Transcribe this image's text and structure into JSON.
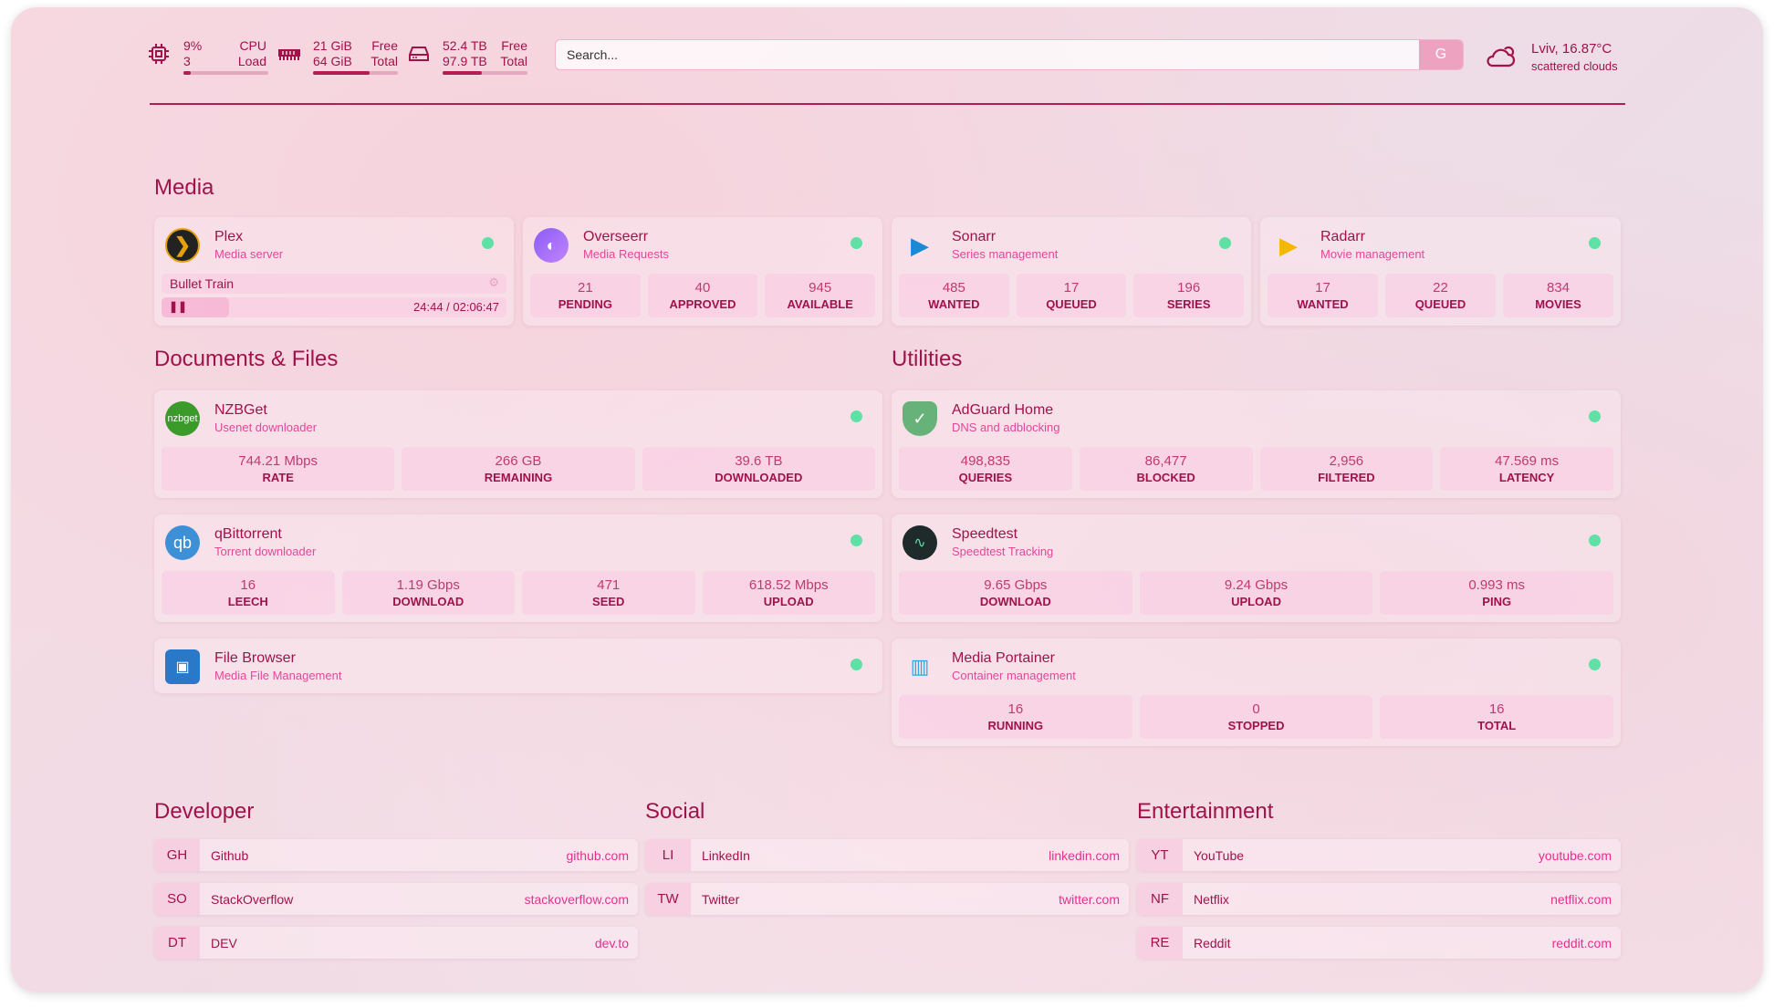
{
  "colors": {
    "accent": "#a0124a",
    "subtitle": "#e2479a",
    "status_online": "#5fe0a4",
    "stat_bg": "#f9c8e1"
  },
  "header": {
    "cpu": {
      "icon": "cpu-icon",
      "value": "9%",
      "sub": "3",
      "label1": "CPU",
      "label2": "Load",
      "percent": 9
    },
    "memory": {
      "icon": "memory-icon",
      "value": "21 GiB",
      "sub": "64 GiB",
      "label1": "Free",
      "label2": "Total",
      "percent": 67
    },
    "disk": {
      "icon": "disk-icon",
      "value": "52.4 TB",
      "sub": "97.9 TB",
      "label1": "Free",
      "label2": "Total",
      "percent": 46
    },
    "search": {
      "placeholder": "Search...",
      "button": "G"
    },
    "weather": {
      "icon": "cloud-sun-icon",
      "location": "Lviv, 16.87°C",
      "condition": "scattered clouds"
    }
  },
  "sections": {
    "media": "Media",
    "documents": "Documents & Files",
    "utilities": "Utilities",
    "developer": "Developer",
    "social": "Social",
    "entertainment": "Entertainment"
  },
  "plex": {
    "name": "Plex",
    "desc": "Media server",
    "now_playing": "Bullet Train",
    "time": "24:44 / 02:06:47",
    "progress": 0.195
  },
  "cards": [
    {
      "id": "overseerr",
      "name": "Overseerr",
      "desc": "Media Requests",
      "icon": "overseerr-icon",
      "stats": [
        [
          "21",
          "PENDING"
        ],
        [
          "40",
          "APPROVED"
        ],
        [
          "945",
          "AVAILABLE"
        ]
      ]
    },
    {
      "id": "sonarr",
      "name": "Sonarr",
      "desc": "Series management",
      "icon": "sonarr-icon",
      "stats": [
        [
          "485",
          "WANTED"
        ],
        [
          "17",
          "QUEUED"
        ],
        [
          "196",
          "SERIES"
        ]
      ]
    },
    {
      "id": "radarr",
      "name": "Radarr",
      "desc": "Movie management",
      "icon": "radarr-icon",
      "stats": [
        [
          "17",
          "WANTED"
        ],
        [
          "22",
          "QUEUED"
        ],
        [
          "834",
          "MOVIES"
        ]
      ]
    },
    {
      "id": "nzbget",
      "name": "NZBGet",
      "desc": "Usenet downloader",
      "icon": "nzbget-icon",
      "logo_text": "nzbget",
      "stats": [
        [
          "744.21 Mbps",
          "RATE"
        ],
        [
          "266 GB",
          "REMAINING"
        ],
        [
          "39.6 TB",
          "DOWNLOADED"
        ]
      ]
    },
    {
      "id": "qbittorrent",
      "name": "qBittorrent",
      "desc": "Torrent downloader",
      "icon": "qbittorrent-icon",
      "logo_text": "qb",
      "stats": [
        [
          "16",
          "LEECH"
        ],
        [
          "1.19 Gbps",
          "DOWNLOAD"
        ],
        [
          "471",
          "SEED"
        ],
        [
          "618.52 Mbps",
          "UPLOAD"
        ]
      ]
    },
    {
      "id": "filebrowser",
      "name": "File Browser",
      "desc": "Media File Management",
      "icon": "filebrowser-icon",
      "stats": []
    },
    {
      "id": "adguard",
      "name": "AdGuard Home",
      "desc": "DNS and adblocking",
      "icon": "adguard-shield-icon",
      "stats": [
        [
          "498,835",
          "QUERIES"
        ],
        [
          "86,477",
          "BLOCKED"
        ],
        [
          "2,956",
          "FILTERED"
        ],
        [
          "47.569 ms",
          "LATENCY"
        ]
      ]
    },
    {
      "id": "speedtest",
      "name": "Speedtest",
      "desc": "Speedtest Tracking",
      "icon": "speedtest-icon",
      "stats": [
        [
          "9.65 Gbps",
          "DOWNLOAD"
        ],
        [
          "9.24 Gbps",
          "UPLOAD"
        ],
        [
          "0.993 ms",
          "PING"
        ]
      ]
    },
    {
      "id": "portainer",
      "name": "Media Portainer",
      "desc": "Container management",
      "icon": "portainer-icon",
      "stats": [
        [
          "16",
          "RUNNING"
        ],
        [
          "0",
          "STOPPED"
        ],
        [
          "16",
          "TOTAL"
        ]
      ]
    }
  ],
  "bookmarks": {
    "developer": [
      {
        "abbr": "GH",
        "name": "Github",
        "url": "github.com"
      },
      {
        "abbr": "SO",
        "name": "StackOverflow",
        "url": "stackoverflow.com"
      },
      {
        "abbr": "DT",
        "name": "DEV",
        "url": "dev.to"
      }
    ],
    "social": [
      {
        "abbr": "LI",
        "name": "LinkedIn",
        "url": "linkedin.com"
      },
      {
        "abbr": "TW",
        "name": "Twitter",
        "url": "twitter.com"
      }
    ],
    "entertainment": [
      {
        "abbr": "YT",
        "name": "YouTube",
        "url": "youtube.com"
      },
      {
        "abbr": "NF",
        "name": "Netflix",
        "url": "netflix.com"
      },
      {
        "abbr": "RE",
        "name": "Reddit",
        "url": "reddit.com"
      }
    ]
  }
}
